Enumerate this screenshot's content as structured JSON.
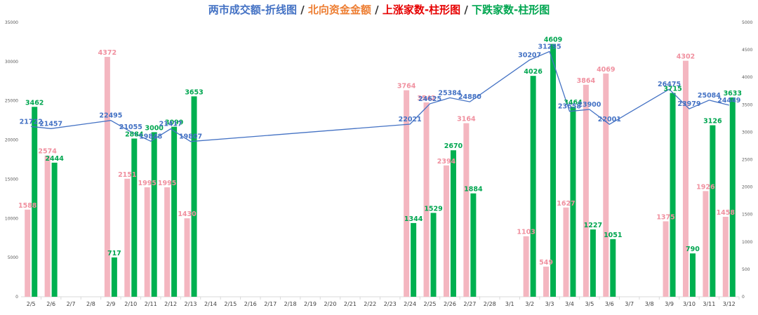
{
  "title": {
    "part1": "两市成交额-折线图",
    "sep1": " / ",
    "part2": "北向资金金额",
    "sep2": " / ",
    "part3": "上涨家数-柱形图",
    "sep3": " / ",
    "part4": "下跌家数-柱形图"
  },
  "colors": {
    "turnover_line": "#4472c4",
    "north": "#ed7d31",
    "up_bar": "#f4b6c0",
    "up_label": "#f0909f",
    "down_bar": "#00b050",
    "down_label": "#00a650",
    "axis": "#d9d9d9"
  },
  "chart_data": {
    "type": "bar",
    "title": "两市成交额-折线图 / 北向资金金额 / 上涨家数-柱形图 / 下跌家数-柱形图",
    "categories": [
      "2/5",
      "2/6",
      "2/7",
      "2/8",
      "2/9",
      "2/10",
      "2/11",
      "2/12",
      "2/13",
      "2/14",
      "2/15",
      "2/16",
      "2/17",
      "2/18",
      "2/19",
      "2/20",
      "2/21",
      "2/22",
      "2/23",
      "2/24",
      "2/25",
      "2/26",
      "2/27",
      "2/28",
      "3/1",
      "3/2",
      "3/3",
      "3/4",
      "3/5",
      "3/6",
      "3/7",
      "3/8",
      "3/9",
      "3/10",
      "3/11",
      "3/12"
    ],
    "left_axis": {
      "ylim": [
        0,
        35000
      ],
      "ticks": [
        0,
        5000,
        10000,
        15000,
        20000,
        25000,
        30000,
        35000
      ]
    },
    "right_axis": {
      "ylim": [
        0,
        5000
      ],
      "ticks": [
        0,
        500,
        1000,
        1500,
        2000,
        2500,
        3000,
        3500,
        4000,
        4500,
        5000
      ]
    },
    "series": [
      {
        "name": "两市成交额",
        "kind": "line",
        "axis": "left",
        "values": [
          21722,
          21457,
          null,
          null,
          22495,
          21055,
          19848,
          21417,
          19807,
          null,
          null,
          null,
          null,
          null,
          null,
          null,
          null,
          null,
          null,
          22021,
          24625,
          25384,
          24880,
          null,
          null,
          30207,
          31295,
          23658,
          23900,
          22001,
          null,
          null,
          26475,
          23979,
          25084,
          24449
        ],
        "labels": [
          "21722",
          "21457",
          "",
          "",
          "22495",
          "21055",
          "19848",
          "21417",
          "19807",
          "",
          "",
          "",
          "",
          "",
          "",
          "",
          "",
          "",
          "",
          "22021",
          "24625",
          "25384",
          "24880",
          "",
          "",
          "30207",
          "31295",
          "23658",
          "23900",
          "22001",
          "",
          "",
          "26475",
          "23979",
          "25084",
          "24449"
        ]
      },
      {
        "name": "上涨家数",
        "kind": "bar",
        "axis": "right",
        "values": [
          1588,
          2574,
          null,
          null,
          4372,
          2151,
          1995,
          1995,
          1430,
          null,
          null,
          null,
          null,
          null,
          null,
          null,
          null,
          null,
          null,
          3764,
          3542,
          2394,
          3164,
          null,
          null,
          1103,
          549,
          1627,
          3864,
          4069,
          null,
          null,
          1375,
          4302,
          1926,
          1458
        ],
        "labels": [
          "1588",
          "2574",
          "",
          "",
          "4372",
          "2151",
          "1995",
          "1995",
          "1430",
          "",
          "",
          "",
          "",
          "",
          "",
          "",
          "",
          "",
          "",
          "3764",
          "3542",
          "2394",
          "3164",
          "",
          "",
          "1103",
          "549",
          "1627",
          "3864",
          "4069",
          "",
          "",
          "1375",
          "4302",
          "1926",
          "1458"
        ]
      },
      {
        "name": "下跌家数",
        "kind": "bar",
        "axis": "right",
        "values": [
          3462,
          2444,
          null,
          null,
          717,
          2884,
          3000,
          3099,
          3653,
          null,
          null,
          null,
          null,
          null,
          null,
          null,
          null,
          null,
          null,
          1344,
          1529,
          2670,
          1884,
          null,
          null,
          4026,
          4609,
          3464,
          1227,
          1051,
          null,
          null,
          3715,
          790,
          3126,
          3633
        ],
        "labels": [
          "3462",
          "2444",
          "",
          "",
          "717",
          "2884",
          "3000",
          "3099",
          "3653",
          "",
          "",
          "",
          "",
          "",
          "",
          "",
          "",
          "",
          "",
          "1344",
          "1529",
          "2670",
          "1884",
          "",
          "",
          "4026",
          "4609",
          "3464",
          "1227",
          "1051",
          "",
          "",
          "3715",
          "790",
          "3126",
          "3633"
        ]
      }
    ],
    "grid": false,
    "legend": "none"
  }
}
